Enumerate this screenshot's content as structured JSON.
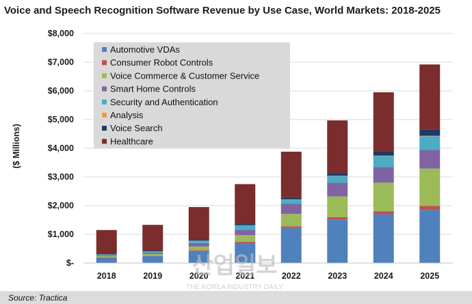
{
  "chart_data": {
    "type": "bar",
    "stacked": true,
    "title": "Voice and Speech Recognition Software Revenue by Use Case, World Markets: 2018-2025",
    "ylabel": "($ Millions)",
    "xlabel": "",
    "ylim": [
      0,
      8000
    ],
    "yticks": [
      0,
      1000,
      2000,
      3000,
      4000,
      5000,
      6000,
      7000,
      8000
    ],
    "ytick_labels": [
      "$-",
      "$1,000",
      "$2,000",
      "$3,000",
      "$4,000",
      "$5,000",
      "$6,000",
      "$7,000",
      "$8,000"
    ],
    "categories": [
      "2018",
      "2019",
      "2020",
      "2021",
      "2022",
      "2023",
      "2024",
      "2025"
    ],
    "series": [
      {
        "name": "Automotive VDAs",
        "color": "#4f81bd",
        "values": [
          180,
          240,
          420,
          700,
          1220,
          1520,
          1700,
          1850
        ]
      },
      {
        "name": "Consumer Robot Controls",
        "color": "#c0504d",
        "values": [
          10,
          15,
          25,
          40,
          60,
          80,
          100,
          140
        ]
      },
      {
        "name": "Voice Commerce & Customer Service",
        "color": "#9bbb59",
        "values": [
          50,
          60,
          130,
          230,
          430,
          720,
          1000,
          1300
        ]
      },
      {
        "name": "Smart Home Controls",
        "color": "#8064a2",
        "values": [
          30,
          50,
          120,
          190,
          350,
          480,
          550,
          650
        ]
      },
      {
        "name": "Security and Authentication",
        "color": "#4bacc6",
        "values": [
          25,
          40,
          80,
          150,
          150,
          230,
          380,
          480
        ]
      },
      {
        "name": "Analysis",
        "color": "#f79646",
        "values": [
          3,
          4,
          5,
          6,
          8,
          10,
          12,
          15
        ]
      },
      {
        "name": "Voice Search",
        "color": "#1f3864",
        "values": [
          22,
          31,
          40,
          54,
          72,
          100,
          158,
          215
        ]
      },
      {
        "name": "Healthcare",
        "color": "#7b2c2c",
        "values": [
          830,
          890,
          1130,
          1380,
          1590,
          1830,
          2050,
          2270
        ]
      }
    ],
    "legend_position": "top-left",
    "grid": true,
    "source": "Source: Tractica"
  },
  "watermark": {
    "main": "산업일보",
    "sub": "THE KOREA INDUSTRY DAILY"
  },
  "colors": {
    "grid": "#d9d9d9",
    "legend_bg": "#d9d9d9",
    "source_bg": "#dcdcdc"
  }
}
